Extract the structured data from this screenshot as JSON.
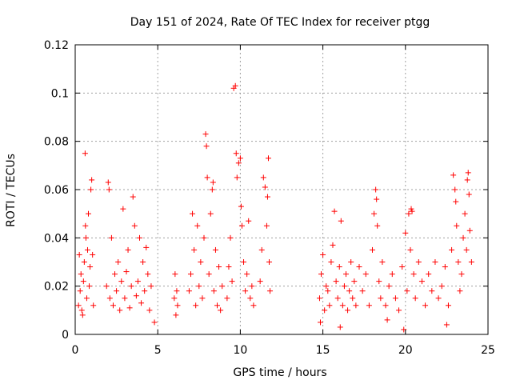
{
  "chart_data": {
    "type": "scatter",
    "title": "Day 151 of 2024, Rate Of TEC Index for receiver ptgg",
    "xlabel": "GPS time / hours",
    "ylabel": "ROTI / TECUs",
    "xlim": [
      0,
      25
    ],
    "ylim": [
      0,
      0.12
    ],
    "xticks": [
      0,
      5,
      10,
      15,
      20,
      25
    ],
    "xtick_labels": [
      "0",
      "5",
      "10",
      "15",
      "20",
      "25"
    ],
    "yticks": [
      0,
      0.02,
      0.04,
      0.06,
      0.08,
      0.1,
      0.12
    ],
    "ytick_labels": [
      "0",
      "0.02",
      "0.04",
      "0.06",
      "0.08",
      "0.1",
      "0.12"
    ],
    "grid": true,
    "marker": "+",
    "series": [
      {
        "name": "ROTI",
        "color": "#ff0000",
        "points": [
          [
            0.2,
            0.012
          ],
          [
            0.3,
            0.018
          ],
          [
            0.35,
            0.025
          ],
          [
            0.4,
            0.01
          ],
          [
            0.5,
            0.022
          ],
          [
            0.55,
            0.03
          ],
          [
            0.6,
            0.075
          ],
          [
            0.62,
            0.045
          ],
          [
            0.65,
            0.04
          ],
          [
            0.7,
            0.015
          ],
          [
            0.75,
            0.035
          ],
          [
            0.8,
            0.05
          ],
          [
            0.85,
            0.02
          ],
          [
            0.9,
            0.028
          ],
          [
            0.95,
            0.06
          ],
          [
            1.0,
            0.064
          ],
          [
            1.05,
            0.033
          ],
          [
            1.1,
            0.012
          ],
          [
            0.25,
            0.033
          ],
          [
            0.45,
            0.008
          ],
          [
            1.9,
            0.02
          ],
          [
            2.0,
            0.063
          ],
          [
            2.05,
            0.06
          ],
          [
            2.1,
            0.015
          ],
          [
            2.2,
            0.04
          ],
          [
            2.3,
            0.012
          ],
          [
            2.4,
            0.025
          ],
          [
            2.5,
            0.018
          ],
          [
            2.6,
            0.03
          ],
          [
            2.7,
            0.01
          ],
          [
            2.8,
            0.022
          ],
          [
            2.9,
            0.052
          ],
          [
            3.0,
            0.015
          ],
          [
            3.1,
            0.026
          ],
          [
            3.2,
            0.035
          ],
          [
            3.3,
            0.011
          ],
          [
            3.4,
            0.02
          ],
          [
            3.5,
            0.057
          ],
          [
            3.6,
            0.045
          ],
          [
            3.7,
            0.016
          ],
          [
            3.8,
            0.022
          ],
          [
            3.9,
            0.04
          ],
          [
            4.0,
            0.013
          ],
          [
            4.1,
            0.03
          ],
          [
            4.2,
            0.018
          ],
          [
            4.3,
            0.036
          ],
          [
            4.4,
            0.025
          ],
          [
            4.5,
            0.01
          ],
          [
            4.6,
            0.02
          ],
          [
            4.8,
            0.005
          ],
          [
            6.0,
            0.015
          ],
          [
            6.05,
            0.025
          ],
          [
            6.1,
            0.008
          ],
          [
            6.15,
            0.018
          ],
          [
            6.2,
            0.012
          ],
          [
            6.9,
            0.018
          ],
          [
            7.0,
            0.025
          ],
          [
            7.1,
            0.05
          ],
          [
            7.2,
            0.035
          ],
          [
            7.3,
            0.012
          ],
          [
            7.4,
            0.045
          ],
          [
            7.5,
            0.02
          ],
          [
            7.6,
            0.03
          ],
          [
            7.7,
            0.015
          ],
          [
            7.8,
            0.04
          ],
          [
            7.9,
            0.083
          ],
          [
            7.95,
            0.078
          ],
          [
            8.0,
            0.065
          ],
          [
            8.1,
            0.025
          ],
          [
            8.2,
            0.05
          ],
          [
            8.3,
            0.06
          ],
          [
            8.35,
            0.063
          ],
          [
            8.4,
            0.018
          ],
          [
            8.5,
            0.035
          ],
          [
            8.6,
            0.012
          ],
          [
            8.7,
            0.028
          ],
          [
            8.8,
            0.01
          ],
          [
            8.9,
            0.02
          ],
          [
            9.2,
            0.015
          ],
          [
            9.3,
            0.028
          ],
          [
            9.4,
            0.04
          ],
          [
            9.5,
            0.022
          ],
          [
            9.6,
            0.102
          ],
          [
            9.7,
            0.103
          ],
          [
            9.75,
            0.075
          ],
          [
            9.8,
            0.065
          ],
          [
            9.9,
            0.071
          ],
          [
            10.0,
            0.073
          ],
          [
            10.05,
            0.053
          ],
          [
            10.1,
            0.045
          ],
          [
            10.2,
            0.03
          ],
          [
            10.3,
            0.018
          ],
          [
            10.4,
            0.025
          ],
          [
            10.5,
            0.047
          ],
          [
            10.6,
            0.015
          ],
          [
            10.7,
            0.02
          ],
          [
            10.8,
            0.012
          ],
          [
            11.2,
            0.022
          ],
          [
            11.3,
            0.035
          ],
          [
            11.4,
            0.065
          ],
          [
            11.5,
            0.061
          ],
          [
            11.6,
            0.045
          ],
          [
            11.65,
            0.057
          ],
          [
            11.7,
            0.073
          ],
          [
            11.75,
            0.03
          ],
          [
            11.8,
            0.018
          ],
          [
            14.8,
            0.015
          ],
          [
            14.9,
            0.025
          ],
          [
            15.0,
            0.033
          ],
          [
            15.1,
            0.01
          ],
          [
            15.2,
            0.02
          ],
          [
            15.3,
            0.018
          ],
          [
            15.4,
            0.012
          ],
          [
            15.5,
            0.03
          ],
          [
            15.6,
            0.037
          ],
          [
            15.7,
            0.051
          ],
          [
            15.8,
            0.022
          ],
          [
            15.9,
            0.015
          ],
          [
            16.0,
            0.028
          ],
          [
            16.1,
            0.047
          ],
          [
            16.2,
            0.012
          ],
          [
            16.3,
            0.02
          ],
          [
            16.4,
            0.025
          ],
          [
            16.5,
            0.01
          ],
          [
            16.6,
            0.018
          ],
          [
            16.7,
            0.03
          ],
          [
            16.8,
            0.015
          ],
          [
            16.9,
            0.022
          ],
          [
            17.0,
            0.012
          ],
          [
            17.2,
            0.028
          ],
          [
            17.4,
            0.018
          ],
          [
            17.6,
            0.025
          ],
          [
            17.8,
            0.012
          ],
          [
            18.0,
            0.035
          ],
          [
            18.1,
            0.05
          ],
          [
            18.2,
            0.06
          ],
          [
            18.25,
            0.056
          ],
          [
            18.3,
            0.045
          ],
          [
            18.4,
            0.022
          ],
          [
            18.5,
            0.015
          ],
          [
            18.6,
            0.03
          ],
          [
            18.8,
            0.012
          ],
          [
            19.0,
            0.02
          ],
          [
            19.2,
            0.025
          ],
          [
            19.4,
            0.015
          ],
          [
            19.6,
            0.01
          ],
          [
            19.8,
            0.028
          ],
          [
            20.0,
            0.042
          ],
          [
            20.1,
            0.018
          ],
          [
            20.2,
            0.05
          ],
          [
            20.3,
            0.035
          ],
          [
            20.35,
            0.052
          ],
          [
            20.4,
            0.051
          ],
          [
            20.5,
            0.025
          ],
          [
            20.6,
            0.015
          ],
          [
            20.8,
            0.03
          ],
          [
            21.0,
            0.022
          ],
          [
            21.2,
            0.012
          ],
          [
            21.4,
            0.025
          ],
          [
            21.6,
            0.018
          ],
          [
            21.8,
            0.03
          ],
          [
            22.0,
            0.015
          ],
          [
            22.2,
            0.02
          ],
          [
            22.4,
            0.028
          ],
          [
            22.6,
            0.012
          ],
          [
            22.8,
            0.035
          ],
          [
            22.9,
            0.066
          ],
          [
            23.0,
            0.06
          ],
          [
            23.05,
            0.055
          ],
          [
            23.1,
            0.045
          ],
          [
            23.2,
            0.03
          ],
          [
            23.3,
            0.018
          ],
          [
            23.4,
            0.025
          ],
          [
            23.5,
            0.04
          ],
          [
            23.6,
            0.05
          ],
          [
            23.7,
            0.035
          ],
          [
            23.75,
            0.064
          ],
          [
            23.8,
            0.067
          ],
          [
            23.85,
            0.058
          ],
          [
            23.9,
            0.043
          ],
          [
            24.0,
            0.03
          ],
          [
            14.85,
            0.005
          ],
          [
            16.05,
            0.003
          ],
          [
            19.9,
            0.002
          ],
          [
            22.5,
            0.004
          ],
          [
            18.9,
            0.006
          ]
        ]
      }
    ]
  }
}
